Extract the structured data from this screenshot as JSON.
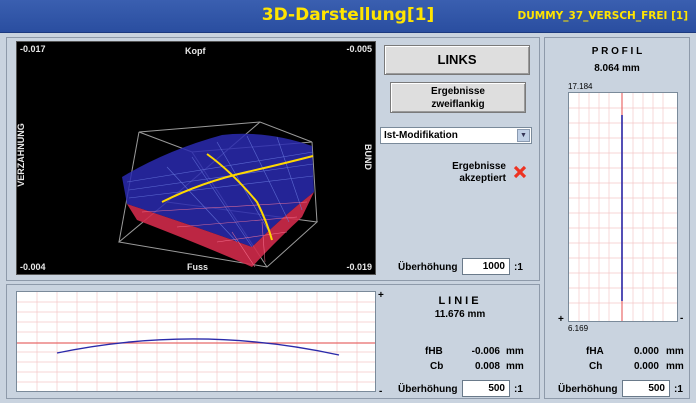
{
  "window": {
    "title": "3D-Darstellung[1]",
    "right_info": "DUMMY_37_VERSCH_FREI   [1]"
  },
  "view3d": {
    "corner_top_left": "-0.017",
    "corner_top_right": "-0.005",
    "corner_bottom_left": "-0.004",
    "corner_bottom_right": "-0.019",
    "label_top": "Kopf",
    "label_bottom": "Fuss",
    "label_left": "VERZAHNUNG",
    "label_right": "BUND"
  },
  "controls": {
    "links_button": "LINKS",
    "ergebnisse_button_line1": "Ergebnisse",
    "ergebnisse_button_line2": "zweiflankig",
    "modification_select": "Ist-Modifikation",
    "accepted_line1": "Ergebnisse",
    "accepted_line2": "akzeptiert",
    "ueberhoehung_label": "Überhöhung",
    "ueberhoehung_value": "1000",
    "ueberhoehung_suffix": ":1"
  },
  "linie": {
    "title": "LINIE",
    "length": "11.676  mm",
    "plus": "+",
    "minus": "-",
    "fHB_label": "fHB",
    "fHB_value": "-0.006",
    "fHB_unit": "mm",
    "Cb_label": "Cb",
    "Cb_value": "0.008",
    "Cb_unit": "mm",
    "ueberhoehung_label": "Überhöhung",
    "ueberhoehung_value": "500",
    "ueberhoehung_suffix": ":1"
  },
  "profil": {
    "title": "P R O F I L",
    "length": "8.064  mm",
    "top_value": "17.184",
    "bottom_value": "6.169",
    "plus": "+",
    "minus": "-",
    "fHA_label": "fHA",
    "fHA_value": "0.000",
    "fHA_unit": "mm",
    "Ch_label": "Ch",
    "Ch_value": "0.000",
    "Ch_unit": "mm",
    "ueberhoehung_label": "Überhöhung",
    "ueberhoehung_value": "500",
    "ueberhoehung_suffix": ":1"
  },
  "colors": {
    "title_bg": "#2a4ea0",
    "title_text": "#ffe400",
    "grid": "#f4c0c0",
    "reference_line": "#e86a6a",
    "measured_line": "#2a2aaa",
    "reject_icon": "#ee3322"
  }
}
